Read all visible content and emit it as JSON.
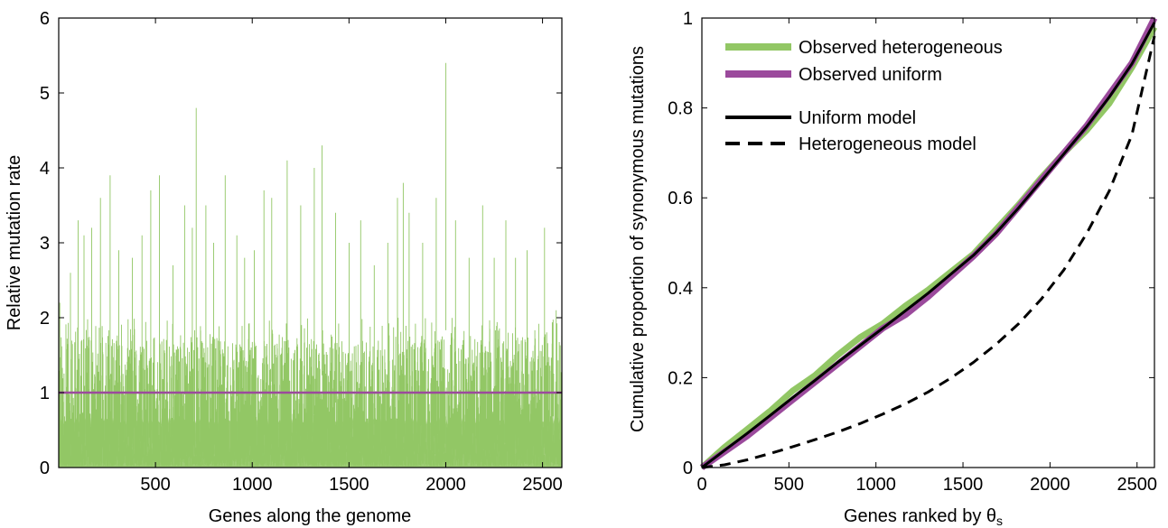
{
  "colors": {
    "heterogeneous": "#92c765",
    "uniform": "#9b4a9c",
    "model": "#000000"
  },
  "chart_data": [
    {
      "type": "line",
      "xlabel": "Genes along the genome",
      "ylabel": "Relative mutation rate",
      "xlim": [
        0,
        2600
      ],
      "ylim": [
        0,
        6
      ],
      "xticks": [
        500,
        1000,
        1500,
        2000,
        2500
      ],
      "yticks": [
        0,
        1,
        2,
        3,
        4,
        5,
        6
      ],
      "xtick_labels": [
        "500",
        "1000",
        "1500",
        "2000",
        "2500"
      ],
      "ytick_labels": [
        "0",
        "1",
        "2",
        "3",
        "4",
        "5",
        "6"
      ],
      "grid": false,
      "series": [
        {
          "name": "Observed heterogeneous",
          "style": "spiky",
          "noise_seed": 17,
          "baseline_max": 2.0,
          "peaks": [
            {
              "x": 5,
              "y": 2.2
            },
            {
              "x": 60,
              "y": 2.6
            },
            {
              "x": 100,
              "y": 3.3
            },
            {
              "x": 130,
              "y": 3.1
            },
            {
              "x": 170,
              "y": 3.2
            },
            {
              "x": 215,
              "y": 3.6
            },
            {
              "x": 265,
              "y": 3.9
            },
            {
              "x": 310,
              "y": 2.9
            },
            {
              "x": 380,
              "y": 2.8
            },
            {
              "x": 430,
              "y": 3.1
            },
            {
              "x": 475,
              "y": 3.7
            },
            {
              "x": 520,
              "y": 3.9
            },
            {
              "x": 590,
              "y": 2.7
            },
            {
              "x": 650,
              "y": 3.5
            },
            {
              "x": 690,
              "y": 3.2
            },
            {
              "x": 710,
              "y": 4.8
            },
            {
              "x": 760,
              "y": 3.5
            },
            {
              "x": 800,
              "y": 3.0
            },
            {
              "x": 860,
              "y": 3.9
            },
            {
              "x": 920,
              "y": 3.1
            },
            {
              "x": 960,
              "y": 2.8
            },
            {
              "x": 1010,
              "y": 2.9
            },
            {
              "x": 1060,
              "y": 3.7
            },
            {
              "x": 1100,
              "y": 3.6
            },
            {
              "x": 1180,
              "y": 4.1
            },
            {
              "x": 1250,
              "y": 3.5
            },
            {
              "x": 1320,
              "y": 4.0
            },
            {
              "x": 1360,
              "y": 4.3
            },
            {
              "x": 1430,
              "y": 3.4
            },
            {
              "x": 1500,
              "y": 3.0
            },
            {
              "x": 1560,
              "y": 3.3
            },
            {
              "x": 1630,
              "y": 2.7
            },
            {
              "x": 1700,
              "y": 3.0
            },
            {
              "x": 1750,
              "y": 3.6
            },
            {
              "x": 1780,
              "y": 3.8
            },
            {
              "x": 1810,
              "y": 3.4
            },
            {
              "x": 1880,
              "y": 3.0
            },
            {
              "x": 1950,
              "y": 3.6
            },
            {
              "x": 2000,
              "y": 5.4
            },
            {
              "x": 2050,
              "y": 3.3
            },
            {
              "x": 2120,
              "y": 2.8
            },
            {
              "x": 2190,
              "y": 3.5
            },
            {
              "x": 2250,
              "y": 2.8
            },
            {
              "x": 2310,
              "y": 3.3
            },
            {
              "x": 2360,
              "y": 2.8
            },
            {
              "x": 2420,
              "y": 2.9
            },
            {
              "x": 2510,
              "y": 3.2
            },
            {
              "x": 2570,
              "y": 2.1
            }
          ]
        },
        {
          "name": "Observed uniform",
          "x": [
            0,
            2600
          ],
          "y": [
            1,
            1
          ]
        }
      ]
    },
    {
      "type": "line",
      "xlabel": "Genes ranked by θs",
      "ylabel": "Cumulative proportion of synonymous mutations",
      "xlim": [
        0,
        2600
      ],
      "ylim": [
        0,
        1
      ],
      "xticks": [
        0,
        500,
        1000,
        1500,
        2000,
        2500
      ],
      "yticks": [
        0,
        0.2,
        0.4,
        0.6,
        0.8,
        1
      ],
      "xtick_labels": [
        "0",
        "500",
        "1000",
        "1500",
        "2000",
        "2500"
      ],
      "ytick_labels": [
        "0",
        "0.2",
        "0.4",
        "0.6",
        "0.8",
        "1"
      ],
      "legend": {
        "position": "top-left",
        "entries": [
          {
            "label": "Observed heterogeneous",
            "style": "thick-green"
          },
          {
            "label": "Observed uniform",
            "style": "thick-purple"
          },
          {
            "label": "Uniform model",
            "style": "solid-black"
          },
          {
            "label": "Heterogeneous model",
            "style": "dashed-black"
          }
        ]
      },
      "series": [
        {
          "name": "Observed heterogeneous",
          "x": [
            0,
            130,
            260,
            390,
            520,
            650,
            780,
            910,
            1040,
            1170,
            1300,
            1430,
            1560,
            1690,
            1820,
            1950,
            2080,
            2210,
            2340,
            2470,
            2600
          ],
          "y": [
            0,
            0.045,
            0.085,
            0.125,
            0.17,
            0.205,
            0.25,
            0.29,
            0.32,
            0.36,
            0.395,
            0.435,
            0.475,
            0.53,
            0.585,
            0.645,
            0.7,
            0.75,
            0.81,
            0.89,
            0.98
          ]
        },
        {
          "name": "Observed uniform",
          "x": [
            0,
            130,
            260,
            390,
            520,
            650,
            780,
            910,
            1040,
            1170,
            1300,
            1430,
            1560,
            1690,
            1820,
            1950,
            2080,
            2210,
            2340,
            2470,
            2600
          ],
          "y": [
            0,
            0.035,
            0.07,
            0.11,
            0.15,
            0.19,
            0.23,
            0.27,
            0.31,
            0.34,
            0.38,
            0.425,
            0.47,
            0.52,
            0.58,
            0.64,
            0.7,
            0.76,
            0.83,
            0.9,
            1.0
          ]
        },
        {
          "name": "Uniform model",
          "x": [
            0,
            130,
            260,
            390,
            520,
            650,
            780,
            910,
            1040,
            1170,
            1300,
            1430,
            1560,
            1690,
            1820,
            1950,
            2080,
            2210,
            2340,
            2470,
            2600
          ],
          "y": [
            0,
            0.038,
            0.076,
            0.115,
            0.155,
            0.194,
            0.234,
            0.272,
            0.31,
            0.349,
            0.388,
            0.43,
            0.472,
            0.522,
            0.578,
            0.638,
            0.698,
            0.758,
            0.824,
            0.898,
            0.99
          ]
        },
        {
          "name": "Heterogeneous model",
          "x": [
            0,
            130,
            260,
            390,
            520,
            650,
            780,
            910,
            1040,
            1170,
            1300,
            1430,
            1560,
            1690,
            1820,
            1950,
            2080,
            2210,
            2340,
            2470,
            2600
          ],
          "y": [
            0,
            0.006,
            0.017,
            0.031,
            0.046,
            0.062,
            0.079,
            0.098,
            0.119,
            0.142,
            0.168,
            0.199,
            0.234,
            0.274,
            0.32,
            0.375,
            0.44,
            0.52,
            0.615,
            0.74,
            0.96
          ]
        }
      ]
    }
  ]
}
